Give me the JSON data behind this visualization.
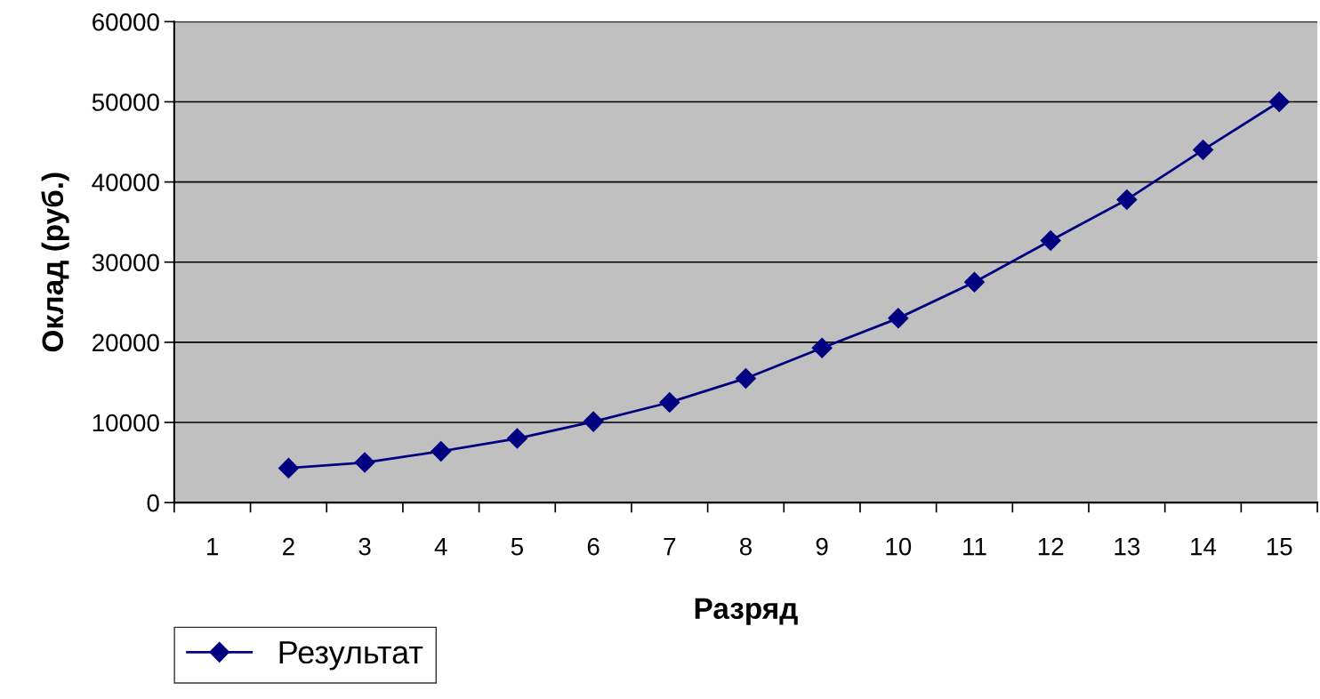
{
  "chart_data": {
    "type": "line",
    "xlabel": "Разряд",
    "ylabel": "Оклад (руб.)",
    "categories": [
      "1",
      "2",
      "3",
      "4",
      "5",
      "6",
      "7",
      "8",
      "9",
      "10",
      "11",
      "12",
      "13",
      "14",
      "15"
    ],
    "series": [
      {
        "name": "Результат",
        "color": "#000080",
        "values": [
          null,
          4300,
          5000,
          6400,
          8000,
          10100,
          12500,
          15500,
          19300,
          23000,
          27500,
          32700,
          37800,
          44000,
          50000
        ]
      }
    ],
    "ylim": [
      0,
      60000
    ],
    "yticks": [
      0,
      10000,
      20000,
      30000,
      40000,
      50000,
      60000
    ],
    "grid": "y",
    "legend": "bottom left",
    "marker": "diamond",
    "line_style": "solid"
  }
}
